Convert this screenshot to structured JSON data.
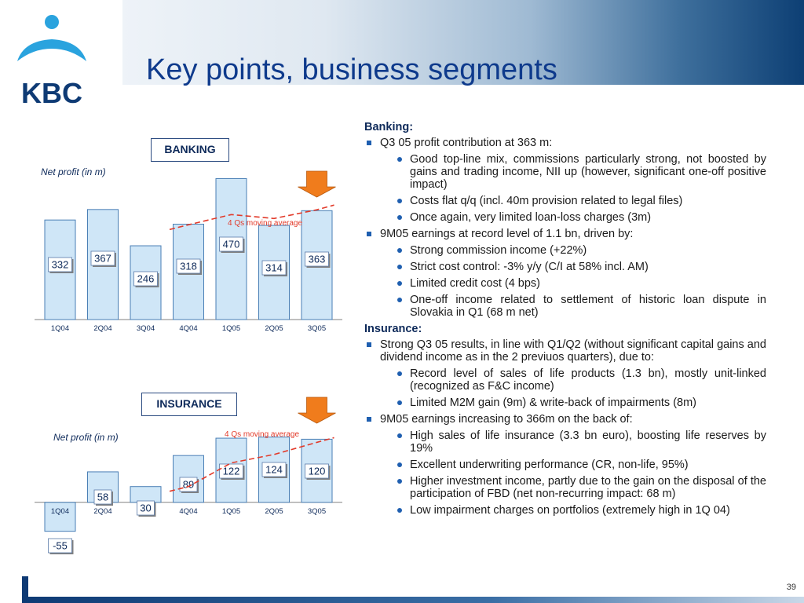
{
  "header": {
    "title": "Key points, business segments",
    "logo_text": "KBC"
  },
  "page_number": "39",
  "charts": [
    {
      "id": "banking",
      "segment_label": "BANKING",
      "net_profit_label": "Net profit (in m)",
      "moving_average_label": "4 Qs moving average",
      "chart_data": {
        "type": "bar",
        "categories": [
          "1Q04",
          "2Q04",
          "3Q04",
          "4Q04",
          "1Q05",
          "2Q05",
          "3Q05"
        ],
        "values": [
          332,
          367,
          246,
          318,
          470,
          314,
          363
        ],
        "value_labels": [
          "332",
          "367",
          "246",
          "318",
          "470",
          "314",
          "363"
        ],
        "moving_average": [
          null,
          null,
          null,
          316,
          350,
          337,
          366
        ],
        "ylim": [
          0,
          500
        ],
        "bar_color": "#cfe6f7",
        "bar_stroke": "#4a7fb5",
        "line_color": "#e23a2a",
        "arrow_color": "#f07c1c"
      }
    },
    {
      "id": "insurance",
      "segment_label": "INSURANCE",
      "net_profit_label": "Net profit (in m)",
      "moving_average_label": "4 Qs moving average",
      "chart_data": {
        "type": "bar",
        "categories": [
          "1Q04",
          "2Q04",
          "3Q04",
          "4Q04",
          "1Q05",
          "2Q05",
          "3Q05"
        ],
        "values": [
          -55,
          58,
          30,
          89,
          122,
          124,
          120
        ],
        "value_labels": [
          "-55",
          "58",
          "30",
          "89",
          "122",
          "124",
          "120"
        ],
        "moving_average": [
          null,
          null,
          null,
          30,
          75,
          91,
          114
        ],
        "ylim": [
          -60,
          140
        ],
        "bar_color": "#cfe6f7",
        "bar_stroke": "#4a7fb5",
        "line_color": "#e23a2a",
        "arrow_color": "#f07c1c"
      }
    }
  ],
  "text": {
    "banking_head": "Banking:",
    "b1": "Q3 05 profit contribution at 363 m:",
    "b1_1": "Good top-line mix, commissions particularly strong, not boosted by gains and trading income, NII up (however, significant one-off positive impact)",
    "b1_2": "Costs flat q/q (incl. 40m provision related to legal files)",
    "b1_3": "Once again, very limited loan-loss charges (3m)",
    "b2": "9M05 earnings at record level of 1.1 bn, driven by:",
    "b2_1": "Strong commission income (+22%)",
    "b2_2": "Strict cost control: -3% y/y (C/I at 58% incl. AM)",
    "b2_3": "Limited credit cost (4 bps)",
    "b2_4": "One-off income related to settlement of historic loan dispute in Slovakia in Q1 (68 m net)",
    "insurance_head": "Insurance:",
    "i1": "Strong Q3 05 results, in line with Q1/Q2 (without significant capital gains and dividend income as in the 2 previuos quarters), due to:",
    "i1_1": "Record level of sales of life products (1.3 bn), mostly unit-linked (recognized as F&C income)",
    "i1_2": "Limited M2M gain (9m) & write-back of impairments (8m)",
    "i2": "9M05 earnings increasing to 366m on the back of:",
    "i2_1": "High sales of life insurance (3.3 bn euro), boosting life reserves by 19%",
    "i2_2": "Excellent underwriting performance (CR, non-life, 95%)",
    "i2_3": "Higher investment income, partly due to the gain on the disposal of the participation of FBD (net non-recurring impact: 68 m)",
    "i2_4": "Low impairment charges on portfolios (extremely high in 1Q 04)"
  }
}
